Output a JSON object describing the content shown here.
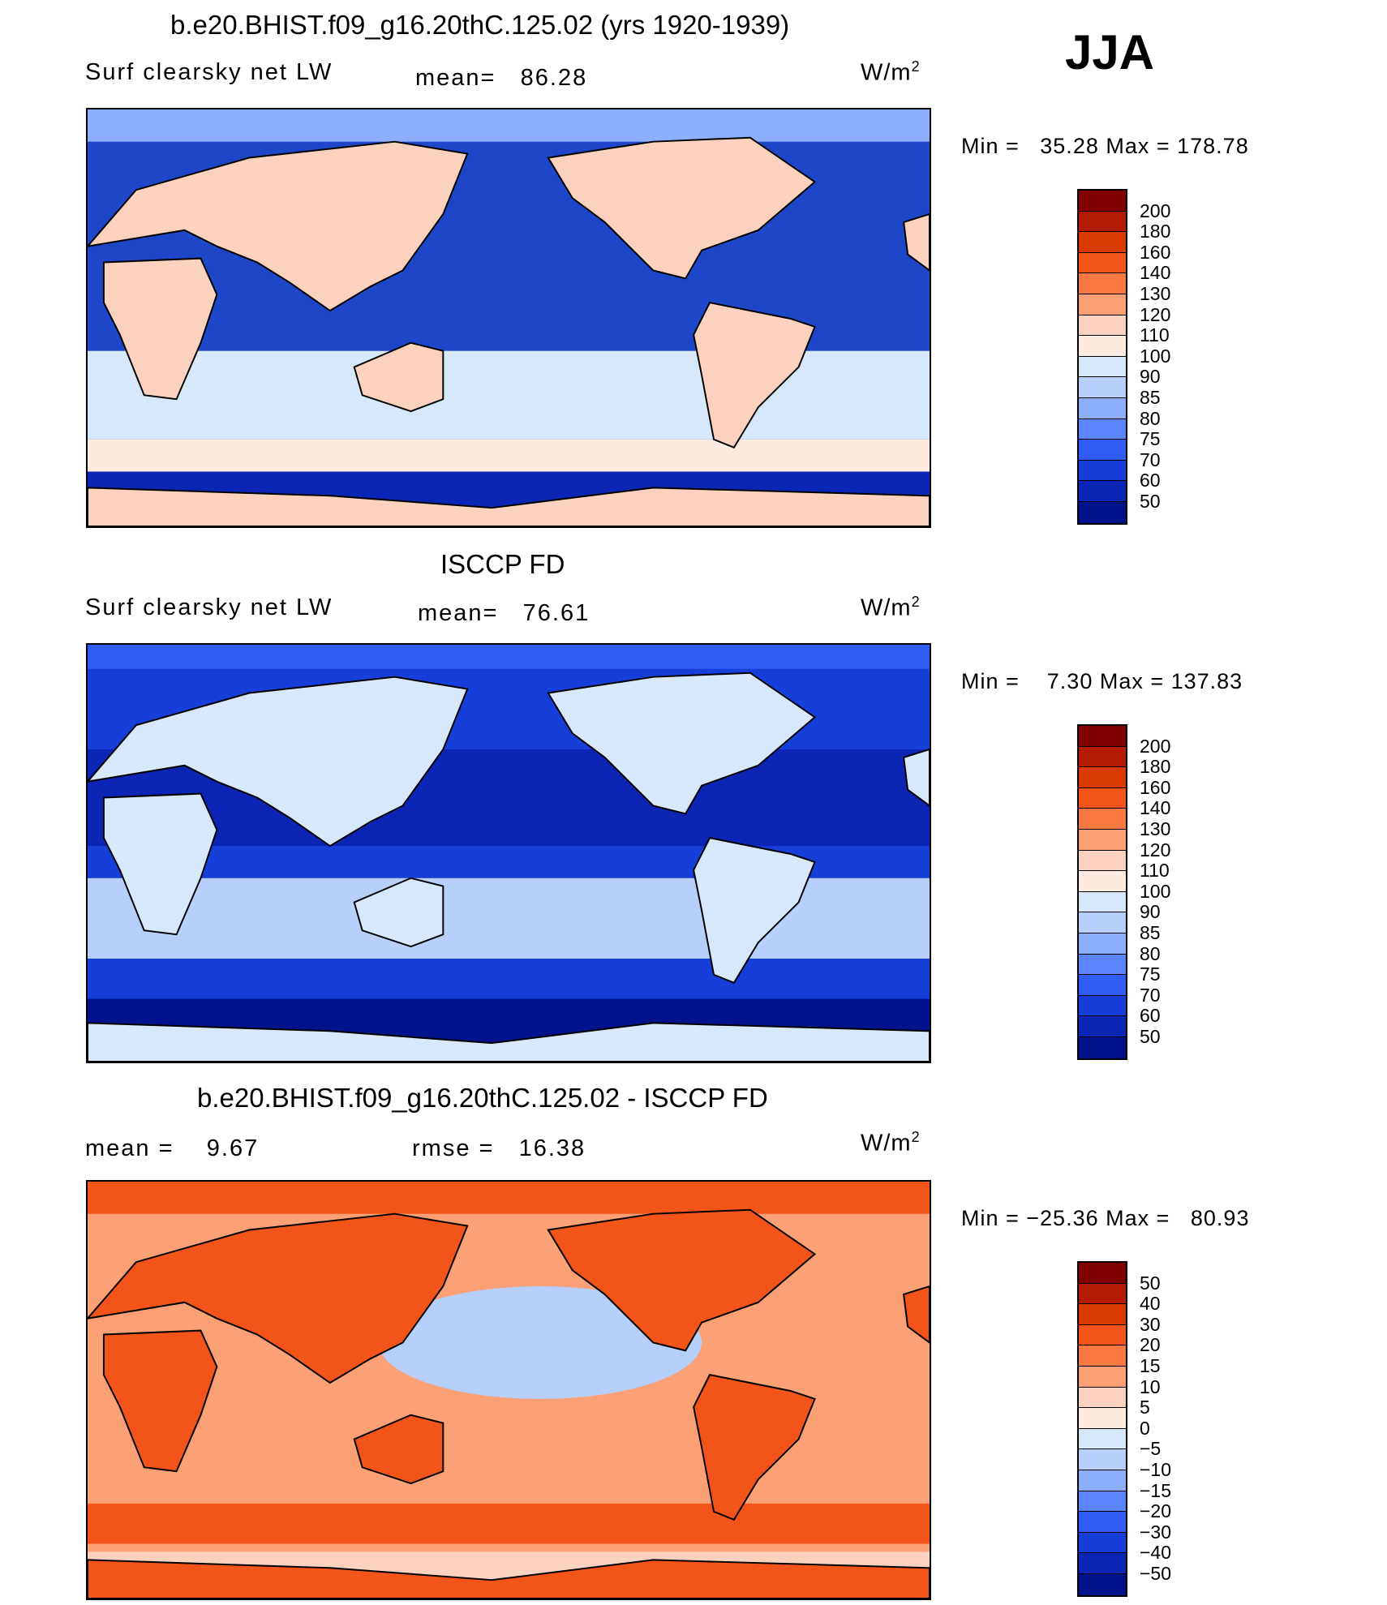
{
  "season": "JJA",
  "units_label": "W/m",
  "units_sup": "2",
  "panels": [
    {
      "title": "b.e20.BHIST.f09_g16.20thC.125.02 (yrs 1920-1939)",
      "left_label": "Surf clearsky net LW",
      "stat_text": "mean=   86.28",
      "minmax": "Min =   35.28 Max = 178.78",
      "ocean_color": "#1e46c8",
      "land_color": "#fcd2bf",
      "colorbar": {
        "colors": [
          "#800000",
          "#b31b00",
          "#d93a00",
          "#f25419",
          "#f97a40",
          "#fca075",
          "#fcd2bf",
          "#fdebe0",
          "#d8e8fb",
          "#b6cffb",
          "#8caefb",
          "#5a85fb",
          "#2f5cf5",
          "#163ed8",
          "#0b25b5",
          "#00138a"
        ],
        "ticks": [
          "200",
          "180",
          "160",
          "140",
          "130",
          "120",
          "110",
          "100",
          "90",
          "85",
          "80",
          "75",
          "70",
          "60",
          "50"
        ]
      }
    },
    {
      "title": "ISCCP FD",
      "left_label": "Surf clearsky net LW",
      "stat_text": "mean=   76.61",
      "minmax": "Min =    7.30 Max = 137.83",
      "ocean_color": "#163ed8",
      "land_color": "#d8e8fb",
      "colorbar": {
        "colors": [
          "#800000",
          "#b31b00",
          "#d93a00",
          "#f25419",
          "#f97a40",
          "#fca075",
          "#fcd2bf",
          "#fdebe0",
          "#d8e8fb",
          "#b6cffb",
          "#8caefb",
          "#5a85fb",
          "#2f5cf5",
          "#163ed8",
          "#0b25b5",
          "#00138a"
        ],
        "ticks": [
          "200",
          "180",
          "160",
          "140",
          "130",
          "120",
          "110",
          "100",
          "90",
          "85",
          "80",
          "75",
          "70",
          "60",
          "50"
        ]
      }
    },
    {
      "title": "b.e20.BHIST.f09_g16.20thC.125.02 - ISCCP FD",
      "left_label": "mean =    9.67",
      "stat_text": "rmse =   16.38",
      "minmax": "Min = −25.36 Max =   80.93",
      "ocean_color": "#fca075",
      "land_color": "#f25419",
      "colorbar": {
        "colors": [
          "#800000",
          "#b31b00",
          "#d93a00",
          "#f25419",
          "#f97a40",
          "#fca075",
          "#fcd2bf",
          "#fdebe0",
          "#d8e8fb",
          "#b6cffb",
          "#8caefb",
          "#5a85fb",
          "#2f5cf5",
          "#163ed8",
          "#0b25b5",
          "#00138a"
        ],
        "ticks": [
          "50",
          "40",
          "30",
          "20",
          "15",
          "10",
          "5",
          "0",
          "−5",
          "−10",
          "−15",
          "−20",
          "−30",
          "−40",
          "−50"
        ]
      }
    }
  ]
}
